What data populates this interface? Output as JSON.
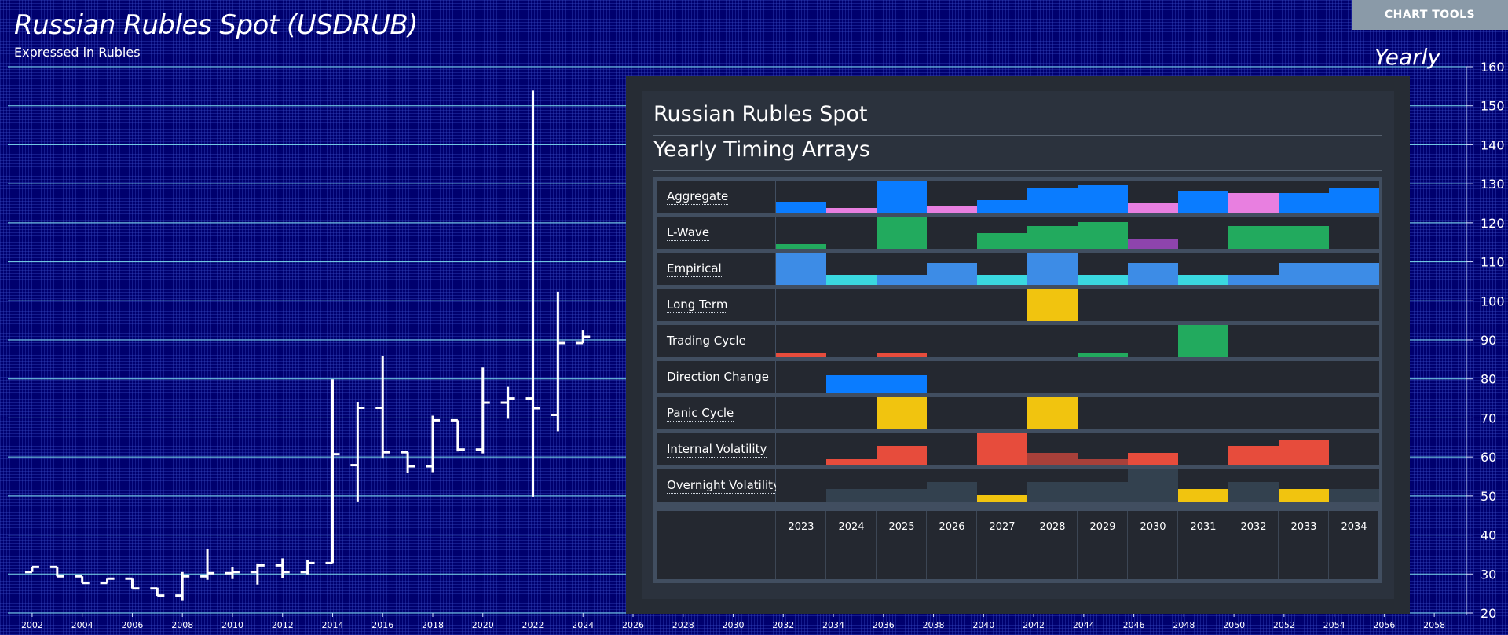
{
  "header": {
    "title": "Russian Rubles Spot (USDRUB)",
    "subtitle": "Expressed in Rubles",
    "period": "Yearly",
    "tools_button": "CHART TOOLS"
  },
  "colors": {
    "background": "#00006e",
    "bar_line": "#ffffff",
    "gridline": "#7fe0ef",
    "panel": "#262c34"
  },
  "chart_data": {
    "type": "bar",
    "style": "ohlc",
    "ylim": [
      20,
      160
    ],
    "yticks": [
      20,
      30,
      40,
      50,
      60,
      70,
      80,
      90,
      100,
      110,
      120,
      130,
      140,
      150,
      160
    ],
    "xlim": [
      2001.5,
      2059
    ],
    "xticks": [
      2002,
      2004,
      2006,
      2008,
      2010,
      2012,
      2014,
      2016,
      2018,
      2020,
      2022,
      2024,
      2026,
      2028,
      2030,
      2032,
      2034,
      2036,
      2038,
      2040,
      2042,
      2044,
      2046,
      2048,
      2050,
      2052,
      2054,
      2056,
      2058
    ],
    "grid": true,
    "bars": [
      {
        "year": 2002,
        "open": 30.5,
        "high": 31.8,
        "low": 30.5,
        "close": 31.8
      },
      {
        "year": 2003,
        "open": 31.8,
        "high": 31.9,
        "low": 29.4,
        "close": 29.4
      },
      {
        "year": 2004,
        "open": 29.4,
        "high": 29.4,
        "low": 27.7,
        "close": 27.7
      },
      {
        "year": 2005,
        "open": 27.7,
        "high": 28.8,
        "low": 27.7,
        "close": 28.8
      },
      {
        "year": 2006,
        "open": 28.8,
        "high": 28.8,
        "low": 26.3,
        "close": 26.3
      },
      {
        "year": 2007,
        "open": 26.3,
        "high": 26.5,
        "low": 24.4,
        "close": 24.5
      },
      {
        "year": 2008,
        "open": 24.5,
        "high": 30.5,
        "low": 23.1,
        "close": 29.4
      },
      {
        "year": 2009,
        "open": 29.4,
        "high": 36.5,
        "low": 28.5,
        "close": 30.2
      },
      {
        "year": 2010,
        "open": 30.2,
        "high": 31.8,
        "low": 28.7,
        "close": 30.5
      },
      {
        "year": 2011,
        "open": 30.5,
        "high": 32.7,
        "low": 27.3,
        "close": 32.2
      },
      {
        "year": 2012,
        "open": 32.2,
        "high": 34.0,
        "low": 28.9,
        "close": 30.5
      },
      {
        "year": 2013,
        "open": 30.5,
        "high": 33.5,
        "low": 29.9,
        "close": 32.8
      },
      {
        "year": 2014,
        "open": 32.8,
        "high": 79.9,
        "low": 32.8,
        "close": 60.7
      },
      {
        "year": 2015,
        "open": 57.9,
        "high": 74.1,
        "low": 48.6,
        "close": 72.6
      },
      {
        "year": 2016,
        "open": 72.6,
        "high": 85.9,
        "low": 59.6,
        "close": 61.2
      },
      {
        "year": 2017,
        "open": 61.2,
        "high": 61.2,
        "low": 55.8,
        "close": 57.6
      },
      {
        "year": 2018,
        "open": 57.6,
        "high": 70.6,
        "low": 56.1,
        "close": 69.4
      },
      {
        "year": 2019,
        "open": 69.4,
        "high": 69.4,
        "low": 61.4,
        "close": 61.9
      },
      {
        "year": 2020,
        "open": 61.9,
        "high": 82.9,
        "low": 60.9,
        "close": 73.9
      },
      {
        "year": 2021,
        "open": 73.9,
        "high": 78.0,
        "low": 69.8,
        "close": 75.0
      },
      {
        "year": 2022,
        "open": 75.0,
        "high": 153.9,
        "low": 49.8,
        "close": 72.5
      },
      {
        "year": 2023,
        "open": 70.8,
        "high": 102.3,
        "low": 66.6,
        "close": 89.2
      },
      {
        "year": 2024,
        "open": 89.2,
        "high": 92.4,
        "low": 89.2,
        "close": 90.8
      }
    ]
  },
  "timing_panel": {
    "title": "Russian Rubles Spot",
    "subtitle": "Yearly Timing Arrays",
    "years": [
      "2023",
      "2024",
      "2025",
      "2026",
      "2027",
      "2028",
      "2029",
      "2030",
      "2031",
      "2032",
      "2033",
      "2034"
    ],
    "rows": [
      {
        "label": "Aggregate",
        "cells": [
          {
            "level": 0.35,
            "color": "#0a7cff"
          },
          {
            "level": 0.15,
            "color": "#e87fe0"
          },
          {
            "level": 1.0,
            "color": "#0a7cff"
          },
          {
            "level": 0.22,
            "color": "#e87fe0"
          },
          {
            "level": 0.4,
            "color": "#0a7cff"
          },
          {
            "level": 0.78,
            "color": "#0a7cff"
          },
          {
            "level": 0.85,
            "color": "#0a7cff"
          },
          {
            "level": 0.32,
            "color": "#e87fe0"
          },
          {
            "level": 0.68,
            "color": "#0a7cff"
          },
          {
            "level": 0.6,
            "color": "#e87fe0"
          },
          {
            "level": 0.6,
            "color": "#0a7cff"
          },
          {
            "level": 0.78,
            "color": "#0a7cff"
          }
        ]
      },
      {
        "label": "L-Wave",
        "cells": [
          {
            "level": 0.15,
            "color": "#22aa5e"
          },
          {
            "level": 0,
            "color": ""
          },
          {
            "level": 1.0,
            "color": "#22aa5e"
          },
          {
            "level": 0,
            "color": ""
          },
          {
            "level": 0.5,
            "color": "#22aa5e"
          },
          {
            "level": 0.7,
            "color": "#22aa5e"
          },
          {
            "level": 0.82,
            "color": "#22aa5e"
          },
          {
            "level": 0.3,
            "color": "#8e44ad"
          },
          {
            "level": 0,
            "color": ""
          },
          {
            "level": 0.7,
            "color": "#22aa5e"
          },
          {
            "level": 0.7,
            "color": "#22aa5e"
          },
          {
            "level": 0,
            "color": ""
          }
        ]
      },
      {
        "label": "Empirical",
        "cells": [
          {
            "level": 1.0,
            "color": "#3d8ce6"
          },
          {
            "level": 0.32,
            "color": "#3ad8e0"
          },
          {
            "level": 0.32,
            "color": "#3d8ce6"
          },
          {
            "level": 0.68,
            "color": "#3d8ce6"
          },
          {
            "level": 0.32,
            "color": "#3ad8e0"
          },
          {
            "level": 1.0,
            "color": "#3d8ce6"
          },
          {
            "level": 0.32,
            "color": "#3ad8e0"
          },
          {
            "level": 0.68,
            "color": "#3d8ce6"
          },
          {
            "level": 0.32,
            "color": "#3ad8e0"
          },
          {
            "level": 0.32,
            "color": "#3d8ce6"
          },
          {
            "level": 0.68,
            "color": "#3d8ce6"
          },
          {
            "level": 0.68,
            "color": "#3d8ce6"
          }
        ]
      },
      {
        "label": "Long Term",
        "cells": [
          {
            "level": 0,
            "color": ""
          },
          {
            "level": 0,
            "color": ""
          },
          {
            "level": 0,
            "color": ""
          },
          {
            "level": 0,
            "color": ""
          },
          {
            "level": 0,
            "color": ""
          },
          {
            "level": 1.0,
            "color": "#f1c40f"
          },
          {
            "level": 0,
            "color": ""
          },
          {
            "level": 0,
            "color": ""
          },
          {
            "level": 0,
            "color": ""
          },
          {
            "level": 0,
            "color": ""
          },
          {
            "level": 0,
            "color": ""
          },
          {
            "level": 0,
            "color": ""
          }
        ]
      },
      {
        "label": "Trading Cycle",
        "cells": [
          {
            "level": 0.12,
            "color": "#e74c3c"
          },
          {
            "level": 0,
            "color": ""
          },
          {
            "level": 0.12,
            "color": "#e74c3c"
          },
          {
            "level": 0,
            "color": ""
          },
          {
            "level": 0,
            "color": ""
          },
          {
            "level": 0,
            "color": ""
          },
          {
            "level": 0.12,
            "color": "#22aa5e"
          },
          {
            "level": 0,
            "color": ""
          },
          {
            "level": 1.0,
            "color": "#22aa5e"
          },
          {
            "level": 0,
            "color": ""
          },
          {
            "level": 0,
            "color": ""
          },
          {
            "level": 0,
            "color": ""
          }
        ]
      },
      {
        "label": "Direction Change",
        "cells": [
          {
            "level": 0,
            "color": ""
          },
          {
            "level": 0.55,
            "color": "#0a7cff"
          },
          {
            "level": 0.55,
            "color": "#0a7cff"
          },
          {
            "level": 0,
            "color": ""
          },
          {
            "level": 0,
            "color": ""
          },
          {
            "level": 0,
            "color": ""
          },
          {
            "level": 0,
            "color": ""
          },
          {
            "level": 0,
            "color": ""
          },
          {
            "level": 0,
            "color": ""
          },
          {
            "level": 0,
            "color": ""
          },
          {
            "level": 0,
            "color": ""
          },
          {
            "level": 0,
            "color": ""
          }
        ]
      },
      {
        "label": "Panic Cycle",
        "cells": [
          {
            "level": 0,
            "color": ""
          },
          {
            "level": 0,
            "color": ""
          },
          {
            "level": 1.0,
            "color": "#f1c40f"
          },
          {
            "level": 0,
            "color": ""
          },
          {
            "level": 0,
            "color": ""
          },
          {
            "level": 1.0,
            "color": "#f1c40f"
          },
          {
            "level": 0,
            "color": ""
          },
          {
            "level": 0,
            "color": ""
          },
          {
            "level": 0,
            "color": ""
          },
          {
            "level": 0,
            "color": ""
          },
          {
            "level": 0,
            "color": ""
          },
          {
            "level": 0,
            "color": ""
          }
        ]
      },
      {
        "label": "Internal Volatility",
        "cells": [
          {
            "level": 0,
            "color": ""
          },
          {
            "level": 0.2,
            "color": "#e74c3c"
          },
          {
            "level": 0.6,
            "color": "#e74c3c"
          },
          {
            "level": 0,
            "color": ""
          },
          {
            "level": 1.0,
            "color": "#e74c3c"
          },
          {
            "level": 0.4,
            "color": "#a8403a"
          },
          {
            "level": 0.2,
            "color": "#a8403a"
          },
          {
            "level": 0.4,
            "color": "#e74c3c"
          },
          {
            "level": 0,
            "color": ""
          },
          {
            "level": 0.6,
            "color": "#e74c3c"
          },
          {
            "level": 0.8,
            "color": "#e74c3c"
          },
          {
            "level": 0,
            "color": ""
          }
        ]
      },
      {
        "label": "Overnight Volatility",
        "cells": [
          {
            "level": 0,
            "color": ""
          },
          {
            "level": 0.4,
            "color": "#33414f"
          },
          {
            "level": 0.4,
            "color": "#33414f"
          },
          {
            "level": 0.6,
            "color": "#33414f"
          },
          {
            "level": 0.2,
            "color": "#f1c40f"
          },
          {
            "level": 0.6,
            "color": "#33414f"
          },
          {
            "level": 0.6,
            "color": "#33414f"
          },
          {
            "level": 1.0,
            "color": "#33414f"
          },
          {
            "level": 0.4,
            "color": "#f1c40f"
          },
          {
            "level": 0.6,
            "color": "#33414f"
          },
          {
            "level": 0.4,
            "color": "#f1c40f"
          },
          {
            "level": 0.4,
            "color": "#33414f"
          }
        ]
      }
    ]
  }
}
